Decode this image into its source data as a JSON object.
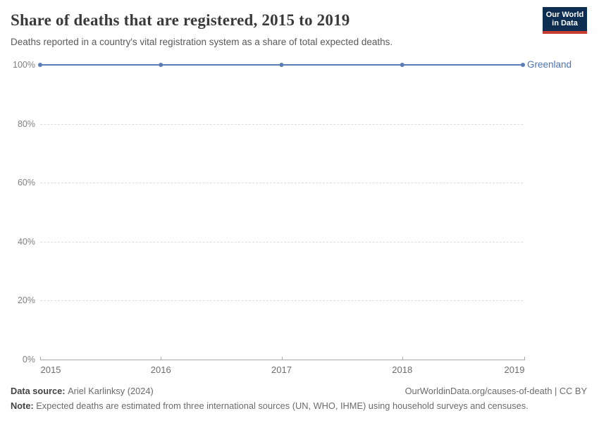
{
  "header": {
    "title": "Share of deaths that are registered, 2015 to 2019",
    "subtitle": "Deaths reported in a country's vital registration system as a share of total expected deaths."
  },
  "logo": {
    "line1": "Our World",
    "line2": "in Data",
    "bg_color": "#0d2d51",
    "accent_color": "#c93c31"
  },
  "chart_data": {
    "type": "line",
    "title": "Share of deaths that are registered, 2015 to 2019",
    "xlabel": "",
    "ylabel": "",
    "x": [
      2015,
      2016,
      2017,
      2018,
      2019
    ],
    "x_tick_labels": [
      "2015",
      "2016",
      "2017",
      "2018",
      "2019"
    ],
    "series": [
      {
        "name": "Greenland",
        "values": [
          100,
          100,
          100,
          100,
          100
        ],
        "color": "#5b7db5",
        "label_color": "#4d73b5"
      }
    ],
    "ylim": [
      0,
      100
    ],
    "yticks": [
      0,
      20,
      40,
      60,
      80,
      100
    ],
    "ytick_suffix": "%",
    "grid": "horizontal-dashed",
    "legend": "line-end-label-right"
  },
  "footer": {
    "data_source_label": "Data source:",
    "data_source_value": "Ariel Karlinksy (2024)",
    "link": "OurWorldinData.org/causes-of-death | CC BY",
    "note_label": "Note:",
    "note_value": "Expected deaths are estimated from three international sources (UN, WHO, IHME) using household surveys and censuses."
  },
  "colors": {
    "grid": "#dcdcdc",
    "axis": "#a9a9a9",
    "ytick_text": "#808080",
    "xtick_text": "#6e6e6e",
    "title": "#3a3a3a",
    "subtitle": "#5a5a5a",
    "footer_text": "#6b6b6b",
    "footer_label": "#424242",
    "line": "#5b7db5",
    "series_label": "#4d73b5",
    "logo_bg": "#0d2d51",
    "logo_accent": "#c93c31"
  }
}
